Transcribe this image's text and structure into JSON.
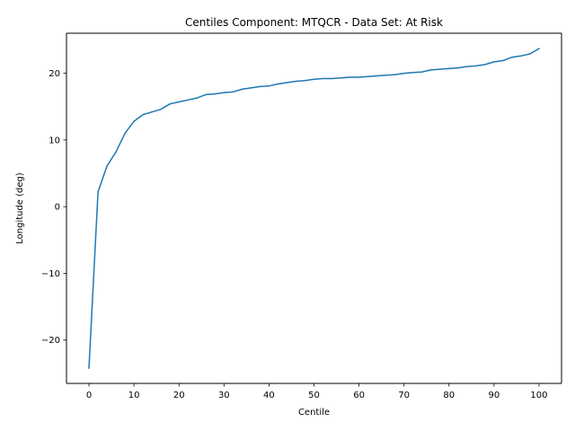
{
  "chart_data": {
    "type": "line",
    "title": "Centiles Component: MTQCR - Data Set: At Risk",
    "xlabel": "Centile",
    "ylabel": "Longitude (deg)",
    "xlim": [
      -5,
      105
    ],
    "ylim": [
      -26.5,
      26.0
    ],
    "xticks": [
      0,
      10,
      20,
      30,
      40,
      50,
      60,
      70,
      80,
      90,
      100
    ],
    "xtick_labels": [
      "0",
      "10",
      "20",
      "30",
      "40",
      "50",
      "60",
      "70",
      "80",
      "90",
      "100"
    ],
    "yticks": [
      -20,
      -10,
      0,
      10,
      20
    ],
    "ytick_labels": [
      "−20",
      "−10",
      "0",
      "10",
      "20"
    ],
    "grid": false,
    "series": [
      {
        "color": "#1f77b4",
        "x": [
          0,
          2,
          4,
          6,
          8,
          10,
          12,
          14,
          16,
          18,
          20,
          22,
          24,
          26,
          28,
          30,
          32,
          34,
          36,
          38,
          40,
          42,
          44,
          46,
          48,
          50,
          52,
          54,
          56,
          58,
          60,
          62,
          64,
          66,
          68,
          70,
          72,
          74,
          76,
          78,
          80,
          82,
          84,
          86,
          88,
          90,
          92,
          94,
          96,
          98,
          100
        ],
        "y": [
          -24.2,
          2.2,
          6.1,
          8.2,
          11.0,
          12.8,
          13.8,
          14.2,
          14.6,
          15.4,
          15.7,
          16.0,
          16.3,
          16.8,
          16.9,
          17.1,
          17.2,
          17.6,
          17.8,
          18.0,
          18.1,
          18.4,
          18.6,
          18.8,
          18.9,
          19.1,
          19.2,
          19.2,
          19.3,
          19.4,
          19.4,
          19.5,
          19.6,
          19.7,
          19.8,
          20.0,
          20.1,
          20.2,
          20.5,
          20.6,
          20.7,
          20.8,
          21.0,
          21.1,
          21.3,
          21.7,
          21.9,
          22.4,
          22.6,
          22.9,
          23.7
        ]
      }
    ]
  }
}
